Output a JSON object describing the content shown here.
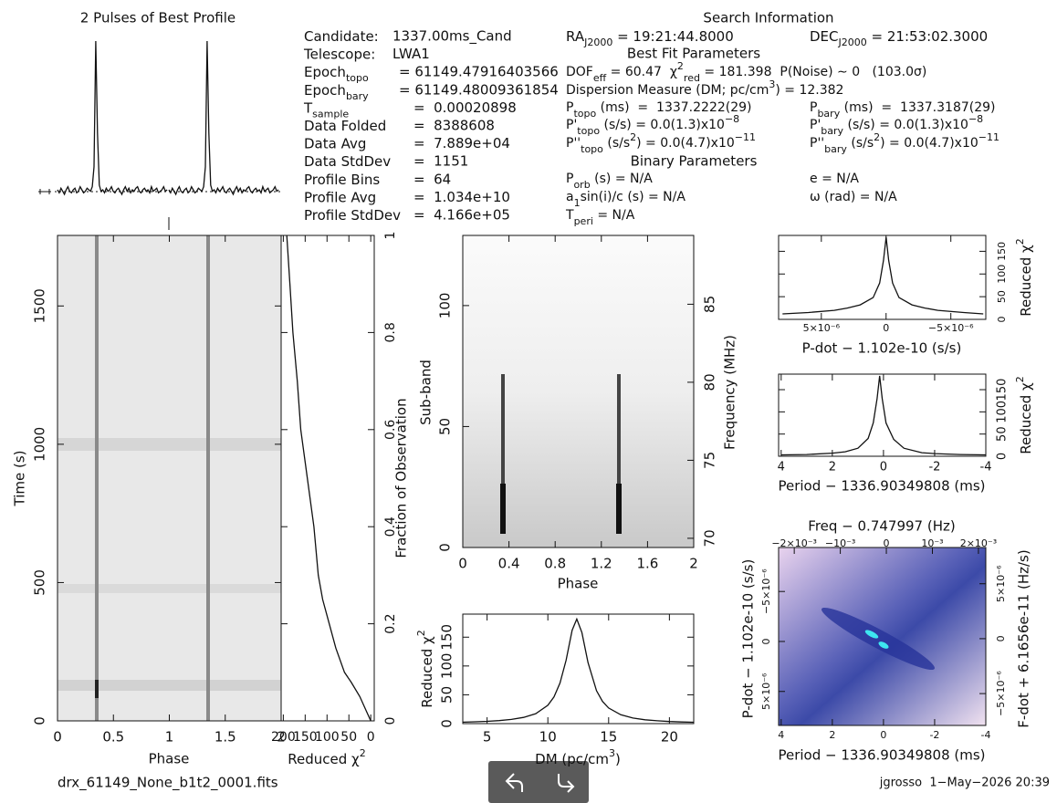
{
  "chart_data": [
    {
      "type": "profile",
      "title": "2 Pulses of Best Profile",
      "values": [
        0.03,
        0.01,
        0.04,
        0.02,
        0.0,
        0.03,
        0.05,
        0.02,
        0.01,
        0.03,
        0.04,
        0.01,
        0.02,
        0.05,
        0.03,
        0.01,
        0.02,
        0.04,
        0.03,
        0.02,
        0.05,
        0.18,
        1.0,
        0.4,
        0.06,
        0.02,
        0.03,
        0.01,
        0.04,
        0.02,
        0.03,
        0.05,
        0.02,
        0.01,
        0.03,
        0.04,
        0.02,
        0.0,
        0.03,
        0.05,
        0.02,
        0.04,
        0.01,
        0.03,
        0.02,
        0.04,
        0.05,
        0.02,
        0.01,
        0.03,
        0.04,
        0.02,
        0.03,
        0.01,
        0.05,
        0.02,
        0.03,
        0.04,
        0.01,
        0.02,
        0.03,
        0.05,
        0.02,
        0.03
      ]
    },
    {
      "type": "heatmap",
      "xlabel": "Phase",
      "ylabel": "Time (s)",
      "xlim": [
        0,
        2
      ],
      "xticks": [
        0,
        0.5,
        1,
        1.5,
        2
      ],
      "ylim": [
        0,
        1755
      ],
      "yticks": [
        0,
        500,
        1000,
        1500
      ]
    },
    {
      "type": "line",
      "xlabel": [
        {
          "t": "Reduced χ"
        },
        {
          "sup": "2"
        }
      ],
      "y2label": "Fraction of Observation",
      "xlim": [
        205,
        -8
      ],
      "xticks": [
        200,
        150,
        100,
        50,
        0
      ],
      "ylim": [
        0,
        1
      ],
      "yticks": [
        0,
        0.2,
        0.4,
        0.6,
        0.8,
        1
      ],
      "y": [
        0,
        0.02,
        0.05,
        0.08,
        0.1,
        0.15,
        0.2,
        0.25,
        0.3,
        0.35,
        0.4,
        0.5,
        0.6,
        0.7,
        0.8,
        0.9,
        1
      ],
      "values": [
        0,
        10,
        25,
        45,
        60,
        80,
        95,
        110,
        120,
        125,
        130,
        145,
        160,
        168,
        178,
        185,
        192
      ]
    },
    {
      "type": "heatmap",
      "xlabel": "Phase",
      "ylabel": "Sub-band",
      "y2label": "Frequency (MHz)",
      "xlim": [
        0,
        2
      ],
      "xticks": [
        0,
        0.4,
        0.8,
        1.2,
        1.6,
        2
      ],
      "ylim": [
        0,
        129
      ],
      "yticks": [
        0,
        50,
        100
      ],
      "y2lim": [
        69.41,
        89.41
      ],
      "y2ticks": [
        70,
        75,
        80,
        85
      ]
    },
    {
      "type": "line",
      "xlabel": [
        {
          "t": "DM (pc/cm"
        },
        {
          "sup": "3"
        },
        {
          "t": ")"
        }
      ],
      "ylabel": [
        {
          "t": "Reduced χ"
        },
        {
          "sup": "2"
        }
      ],
      "xlim": [
        3,
        22
      ],
      "xticks": [
        5,
        10,
        15,
        20
      ],
      "ylim": [
        0,
        190
      ],
      "yticks": [
        0,
        50,
        100,
        150
      ],
      "x": [
        3,
        4,
        5,
        6,
        7,
        8,
        9,
        10,
        10.5,
        11,
        11.5,
        12,
        12.382,
        12.8,
        13.3,
        14,
        14.5,
        15,
        16,
        17,
        18,
        19,
        20,
        21,
        22
      ],
      "values": [
        2.5,
        3.1,
        3.9,
        5.2,
        7.3,
        10.7,
        17.3,
        31.9,
        46.2,
        70.4,
        110,
        162,
        181.398,
        158,
        106,
        57.1,
        38.4,
        27.1,
        15.3,
        9.7,
        6.7,
        4.9,
        3.7,
        2.9,
        2.3
      ]
    },
    {
      "type": "line",
      "xlabel": "P-dot − 1.102e-10 (s/s)",
      "ylabel": [
        {
          "t": "Reduced χ"
        },
        {
          "sup": "2"
        }
      ],
      "xlim": [
        8.3e-06,
        -7.7e-06
      ],
      "xticks": [
        {
          "value": 5e-06,
          "label": "5×10⁻⁶"
        },
        0,
        {
          "value": -5e-06,
          "label": "−5×10⁻⁶"
        }
      ],
      "ylim": [
        0,
        185
      ],
      "yticks": [
        0,
        50,
        100,
        150
      ],
      "x": [
        8e-06,
        6e-06,
        4e-06,
        3e-06,
        2e-06,
        1e-06,
        5e-07,
        2e-07,
        0,
        -2e-07,
        -5e-07,
        -1e-06,
        -2e-06,
        -3e-06,
        -4e-06,
        -6e-06,
        -7.5e-06
      ],
      "values": [
        12,
        15,
        20,
        25,
        32,
        48,
        80,
        130,
        181,
        130,
        80,
        48,
        32,
        25,
        20,
        15,
        12
      ]
    },
    {
      "type": "line",
      "xlabel": "Period − 1336.90349808 (ms)",
      "ylabel": [
        {
          "t": "Reduced χ"
        },
        {
          "sup": "2"
        }
      ],
      "xlim": [
        4.1,
        -4
      ],
      "xticks": [
        4,
        2,
        0,
        -2,
        -4
      ],
      "ylim": [
        0,
        185
      ],
      "yticks": [
        0,
        50,
        100,
        150
      ],
      "x": [
        4,
        3,
        2,
        1.5,
        1,
        0.6,
        0.4,
        0.25,
        0.15,
        0.05,
        -0.1,
        -0.4,
        -0.8,
        -1.5,
        -2,
        -3,
        -4
      ],
      "values": [
        3,
        4,
        7,
        10,
        18,
        40,
        75,
        130,
        181,
        130,
        75,
        38,
        18,
        8,
        6,
        4,
        3
      ]
    },
    {
      "type": "image",
      "title": "Freq − 0.747997 (Hz)",
      "xlabel": "Period − 1336.90349808 (ms)",
      "ylabel": "P-dot − 1.102e-10 (s/s)",
      "y2label": "F-dot + 6.1656e-11 (Hz/s)",
      "xlim": [
        4.1,
        -4
      ],
      "xticks": [
        4,
        2,
        0,
        -2,
        -4
      ],
      "x2lim": [
        -0.00234,
        0.00216
      ],
      "x2ticks": [
        {
          "value": -0.002,
          "label": "−2×10⁻³"
        },
        {
          "value": -0.001,
          "label": "−10⁻³"
        },
        0,
        {
          "value": 0.001,
          "label": "10⁻³"
        },
        {
          "value": 0.002,
          "label": "2×10⁻³"
        }
      ],
      "ylim": [
        8.4e-06,
        -9.4e-06
      ],
      "yticks": [
        {
          "value": 5e-06,
          "label": "5×10⁻⁶"
        },
        0,
        {
          "value": -5e-06,
          "label": "−5×10⁻⁶"
        }
      ],
      "y2lim": [
        -7.9e-06,
        8.3e-06
      ],
      "y2ticks": [
        {
          "value": -5e-06,
          "label": "−5×10⁻⁶"
        },
        0,
        {
          "value": 5e-06,
          "label": "5×10⁻⁶"
        }
      ]
    }
  ],
  "info": {
    "title": "Search Information",
    "left": [
      {
        "label": [
          {
            "t": "Candidate:"
          }
        ],
        "value": "1337.00ms_Cand"
      },
      {
        "label": [
          {
            "t": "Telescope:"
          }
        ],
        "value": "LWA1"
      },
      {
        "label": [
          {
            "t": "Epoch"
          },
          {
            "sub": "topo"
          }
        ],
        "value": "= 61149.47916403566"
      },
      {
        "label": [
          {
            "t": "Epoch"
          },
          {
            "sub": "bary"
          }
        ],
        "value": "= 61149.48009361854"
      },
      {
        "label": [
          {
            "t": "T"
          },
          {
            "sub": "sample"
          }
        ],
        "value": "=  0.00020898"
      },
      {
        "label": [
          {
            "t": "Data Folded"
          }
        ],
        "value": "=  8388608"
      },
      {
        "label": [
          {
            "t": "Data Avg"
          }
        ],
        "value": "=  7.889e+04"
      },
      {
        "label": [
          {
            "t": "Data StdDev"
          }
        ],
        "value": "=  1151"
      },
      {
        "label": [
          {
            "t": "Profile Bins"
          }
        ],
        "value": "=  64"
      },
      {
        "label": [
          {
            "t": "Profile Avg"
          }
        ],
        "value": "=  1.034e+10"
      },
      {
        "label": [
          {
            "t": "Profile StdDev"
          }
        ],
        "value": "=  4.166e+05"
      }
    ],
    "ra": [
      {
        "t": "RA"
      },
      {
        "sub": "J2000"
      },
      {
        "t": " = 19:21:44.8000"
      }
    ],
    "dec": [
      {
        "t": "DEC"
      },
      {
        "sub": "J2000"
      },
      {
        "t": " = 21:53:02.3000"
      }
    ],
    "best_fit": "Best Fit Parameters",
    "fit": [
      [
        [
          {
            "t": "DOF"
          },
          {
            "sub": "eff"
          },
          {
            "t": " = 60.47  χ"
          },
          {
            "sup": "2"
          },
          {
            "sub": "red"
          },
          {
            "t": " = 181.398  P(Noise) ∼ 0   (103.0σ)"
          }
        ]
      ],
      [
        [
          {
            "t": "Dispersion Measure (DM; pc/cm"
          },
          {
            "sup": "3"
          },
          {
            "t": ") = 12.382"
          }
        ]
      ],
      [
        [
          {
            "t": "P"
          },
          {
            "sub": "topo"
          },
          {
            "t": " (ms)  =  1337.2222(29)"
          }
        ],
        [
          {
            "t": "P"
          },
          {
            "sub": "bary"
          },
          {
            "t": " (ms)  =  1337.3187(29)"
          }
        ]
      ],
      [
        [
          {
            "t": "P'"
          },
          {
            "sub": "topo"
          },
          {
            "t": " (s/s) = 0.0(1.3)x10"
          },
          {
            "sup": "−8"
          }
        ],
        [
          {
            "t": "P'"
          },
          {
            "sub": "bary"
          },
          {
            "t": " (s/s) = 0.0(1.3)x10"
          },
          {
            "sup": "−8"
          }
        ]
      ],
      [
        [
          {
            "t": "P''"
          },
          {
            "sub": "topo"
          },
          {
            "t": " (s/s"
          },
          {
            "sup": "2"
          },
          {
            "t": ") = 0.0(4.7)x10"
          },
          {
            "sup": "−11"
          }
        ],
        [
          {
            "t": "P''"
          },
          {
            "sub": "bary"
          },
          {
            "t": " (s/s"
          },
          {
            "sup": "2"
          },
          {
            "t": ") = 0.0(4.7)x10"
          },
          {
            "sup": "−11"
          }
        ]
      ]
    ],
    "binary": "Binary Parameters",
    "bin": [
      [
        [
          {
            "t": "P"
          },
          {
            "sub": "orb"
          },
          {
            "t": " (s) = N/A"
          }
        ],
        [
          {
            "t": "e = N/A"
          }
        ]
      ],
      [
        [
          {
            "t": "a"
          },
          {
            "sub": "1"
          },
          {
            "t": "sin(i)/c (s) = N/A"
          }
        ],
        [
          {
            "t": "ω (rad) = N/A"
          }
        ]
      ],
      [
        [
          {
            "t": "T"
          },
          {
            "sub": "peri"
          },
          {
            "t": " = N/A"
          }
        ]
      ]
    ]
  },
  "footer": {
    "file": "drx_61149_None_b1t2_0001.fits",
    "credit": "jgrosso  1−May−2026 20:39"
  }
}
